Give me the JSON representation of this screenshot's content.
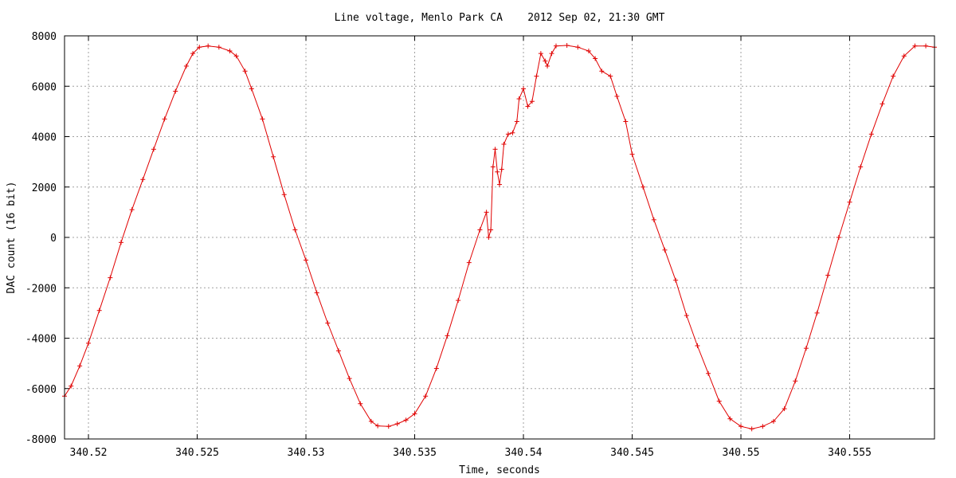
{
  "chart_data": {
    "type": "line",
    "title": "Line voltage, Menlo Park CA    2012 Sep 02, 21:30 GMT",
    "xlabel": "Time, seconds",
    "ylabel": "DAC count (16 bit)",
    "xlim": [
      340.5189,
      340.5589
    ],
    "ylim": [
      -8000,
      8000
    ],
    "x_ticks": [
      340.52,
      340.525,
      340.53,
      340.535,
      340.54,
      340.545,
      340.55,
      340.555
    ],
    "x_tick_labels": [
      "340.52",
      "340.525",
      "340.53",
      "340.535",
      "340.54",
      "340.545",
      "340.55",
      "340.555"
    ],
    "y_ticks": [
      -8000,
      -6000,
      -4000,
      -2000,
      0,
      2000,
      4000,
      6000,
      8000
    ],
    "y_tick_labels": [
      "-8000",
      "-6000",
      "-4000",
      "-2000",
      "0",
      "2000",
      "4000",
      "6000",
      "8000"
    ],
    "grid": true,
    "marker": "+",
    "series_color": "#e00000",
    "series": [
      {
        "name": "",
        "points": [
          [
            340.5189,
            -6300
          ],
          [
            340.5192,
            -5900
          ],
          [
            340.5196,
            -5100
          ],
          [
            340.52,
            -4200
          ],
          [
            340.5205,
            -2900
          ],
          [
            340.521,
            -1600
          ],
          [
            340.5215,
            -200
          ],
          [
            340.522,
            1100
          ],
          [
            340.5225,
            2300
          ],
          [
            340.523,
            3500
          ],
          [
            340.5235,
            4700
          ],
          [
            340.524,
            5800
          ],
          [
            340.5245,
            6800
          ],
          [
            340.5248,
            7300
          ],
          [
            340.5251,
            7550
          ],
          [
            340.5255,
            7600
          ],
          [
            340.526,
            7550
          ],
          [
            340.5265,
            7400
          ],
          [
            340.5268,
            7200
          ],
          [
            340.5272,
            6600
          ],
          [
            340.5275,
            5900
          ],
          [
            340.528,
            4700
          ],
          [
            340.5285,
            3200
          ],
          [
            340.529,
            1700
          ],
          [
            340.5295,
            300
          ],
          [
            340.53,
            -900
          ],
          [
            340.5305,
            -2200
          ],
          [
            340.531,
            -3400
          ],
          [
            340.5315,
            -4500
          ],
          [
            340.532,
            -5600
          ],
          [
            340.5325,
            -6600
          ],
          [
            340.533,
            -7300
          ],
          [
            340.5333,
            -7480
          ],
          [
            340.5338,
            -7500
          ],
          [
            340.5342,
            -7400
          ],
          [
            340.5346,
            -7250
          ],
          [
            340.535,
            -7000
          ],
          [
            340.5355,
            -6300
          ],
          [
            340.536,
            -5200
          ],
          [
            340.5365,
            -3900
          ],
          [
            340.537,
            -2500
          ],
          [
            340.5375,
            -1000
          ],
          [
            340.538,
            300
          ],
          [
            340.5383,
            1000
          ],
          [
            340.5384,
            0
          ],
          [
            340.5385,
            300
          ],
          [
            340.5386,
            2800
          ],
          [
            340.5387,
            3500
          ],
          [
            340.5388,
            2600
          ],
          [
            340.5389,
            2100
          ],
          [
            340.539,
            2700
          ],
          [
            340.5391,
            3700
          ],
          [
            340.5393,
            4100
          ],
          [
            340.5395,
            4150
          ],
          [
            340.5397,
            4600
          ],
          [
            340.5398,
            5500
          ],
          [
            340.54,
            5900
          ],
          [
            340.5402,
            5200
          ],
          [
            340.5404,
            5400
          ],
          [
            340.5406,
            6400
          ],
          [
            340.5408,
            7300
          ],
          [
            340.541,
            7000
          ],
          [
            340.5411,
            6800
          ],
          [
            340.5413,
            7300
          ],
          [
            340.5415,
            7600
          ],
          [
            340.542,
            7620
          ],
          [
            340.5425,
            7550
          ],
          [
            340.543,
            7400
          ],
          [
            340.5433,
            7100
          ],
          [
            340.5436,
            6600
          ],
          [
            340.544,
            6400
          ],
          [
            340.5443,
            5600
          ],
          [
            340.5447,
            4600
          ],
          [
            340.545,
            3300
          ],
          [
            340.5455,
            2000
          ],
          [
            340.546,
            700
          ],
          [
            340.5465,
            -500
          ],
          [
            340.547,
            -1700
          ],
          [
            340.5475,
            -3100
          ],
          [
            340.548,
            -4300
          ],
          [
            340.5485,
            -5400
          ],
          [
            340.549,
            -6500
          ],
          [
            340.5495,
            -7200
          ],
          [
            340.55,
            -7500
          ],
          [
            340.5505,
            -7600
          ],
          [
            340.551,
            -7500
          ],
          [
            340.5515,
            -7300
          ],
          [
            340.552,
            -6800
          ],
          [
            340.5525,
            -5700
          ],
          [
            340.553,
            -4400
          ],
          [
            340.5535,
            -3000
          ],
          [
            340.554,
            -1500
          ],
          [
            340.5545,
            0
          ],
          [
            340.555,
            1400
          ],
          [
            340.5555,
            2800
          ],
          [
            340.556,
            4100
          ],
          [
            340.5565,
            5300
          ],
          [
            340.557,
            6400
          ],
          [
            340.5575,
            7200
          ],
          [
            340.558,
            7600
          ],
          [
            340.5585,
            7600
          ],
          [
            340.5589,
            7550
          ]
        ]
      }
    ]
  }
}
